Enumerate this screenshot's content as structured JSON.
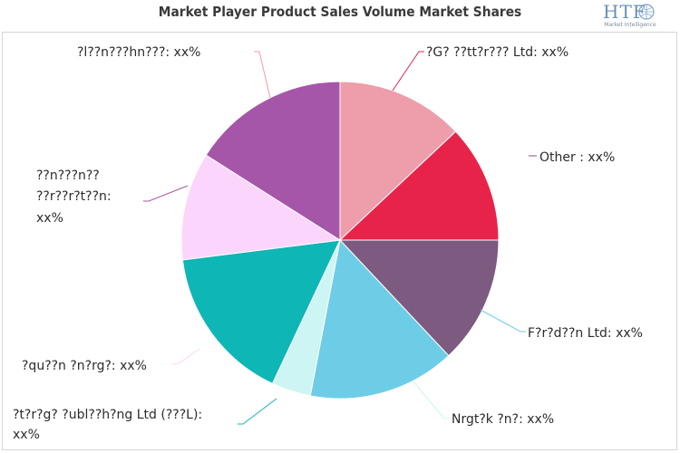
{
  "header": {
    "title": "Market Player Product Sales Volume Market Shares",
    "logo_text": "HTF",
    "logo_subtitle": "Market Intelligence"
  },
  "chart_data": {
    "type": "pie",
    "title": "Market Player Product Sales Volume Market Shares",
    "start_angle_deg": 0,
    "direction": "clockwise",
    "slices": [
      {
        "label": "Other : xx%",
        "value": 13,
        "color": "#7d5a80"
      },
      {
        "label": "F?r?d??n Ltd: xx%",
        "value": 15,
        "color": "#6ecde6"
      },
      {
        "label": "Nrgt?k ?n?: xx%",
        "value": 4,
        "color": "#cdf5f3"
      },
      {
        "label": "?t?r?g? ?ubl??h?ng Ltd (???L): xx%",
        "value": 16,
        "color": "#0fb6b6"
      },
      {
        "label": "?qu??n ?n?rg?: xx%",
        "value": 11,
        "color": "#fcd5fc"
      },
      {
        "label": "??n???n?? ??r??r?t??n: xx%",
        "value": 16,
        "color": "#a556a8"
      },
      {
        "label": "?l??n???hn???: xx%",
        "value": 13,
        "color": "#ed9eaa"
      },
      {
        "label": "?G? ??tt?r??? Ltd: xx%",
        "value": 12,
        "color": "#e8234a"
      }
    ]
  }
}
